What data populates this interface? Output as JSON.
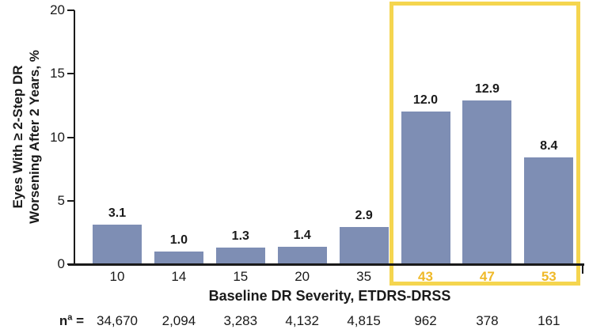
{
  "chart_data": {
    "type": "bar",
    "title": "",
    "ylabel_line1": "Eyes With ≥ 2-Step DR",
    "ylabel_line2": "Worsening After 2 Years, %",
    "xlabel": "Baseline DR Severity, ETDRS-DRSS",
    "categories": [
      "10",
      "14",
      "15",
      "20",
      "35",
      "43",
      "47",
      "53"
    ],
    "values": [
      3.1,
      1.0,
      1.3,
      1.4,
      2.9,
      12.0,
      12.9,
      8.4
    ],
    "value_labels": [
      "3.1",
      "1.0",
      "1.3",
      "1.4",
      "2.9",
      "12.0",
      "12.9",
      "8.4"
    ],
    "highlighted": [
      false,
      false,
      false,
      false,
      false,
      true,
      true,
      true
    ],
    "n_row": {
      "prefix_base": "n",
      "prefix_sup": "a",
      "prefix_eq": " =",
      "values": [
        "34,670",
        "2,094",
        "3,283",
        "4,132",
        "4,815",
        "962",
        "378",
        "161"
      ]
    },
    "y_ticks": [
      "0",
      "5",
      "10",
      "15",
      "20"
    ],
    "ylim": [
      0,
      20
    ],
    "grid": false,
    "legend": "none",
    "highlight_note": "categories 43, 47, 53 enclosed in a yellow box with gold tick labels",
    "colors": {
      "bar": "#7e8eb4",
      "highlight_box": "#f5d54f",
      "highlight_label": "#efb929",
      "axis": "#1a1a1a",
      "text": "#1a1a1a",
      "background": "#ffffff"
    }
  }
}
